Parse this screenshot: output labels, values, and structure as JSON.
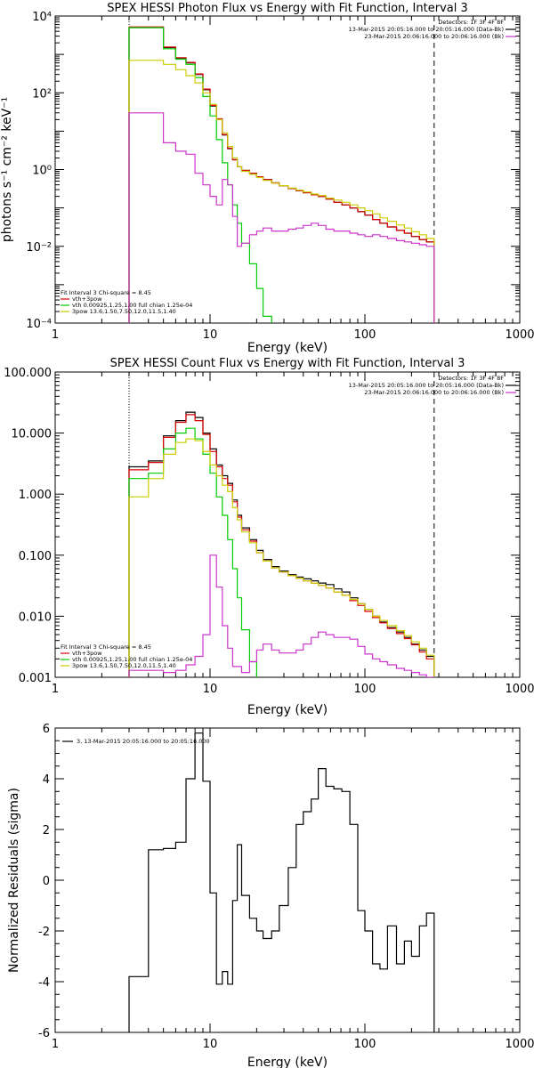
{
  "chart_data": [
    {
      "type": "line",
      "title": "SPEX HESSI Photon Flux vs Energy with Fit Function, Interval 3",
      "xlabel": "Energy (keV)",
      "ylabel": "photons s⁻¹ cm⁻² keV⁻¹",
      "xscale": "log",
      "yscale": "log",
      "xlim": [
        1,
        1000
      ],
      "ylim": [
        0.0001,
        10000
      ],
      "x_ticks": [
        "1",
        "10",
        "100",
        "1000"
      ],
      "y_ticks": [
        "10⁻⁴",
        "10⁻²",
        "10⁰",
        "10²",
        "10⁴"
      ],
      "legend_top_right": {
        "header": "Detectors: 1F 3F 4F 8F",
        "entries": [
          {
            "label": "13-Mar-2015 20:05:16.000 to 20:05:16.000 (Data-Bk)",
            "color": "#000000"
          },
          {
            "label": "23-Mar-2015 20:06:16.000 to 20:06:16.000 (Bk)",
            "color": "#cc33cc"
          }
        ]
      },
      "legend_bottom_left": {
        "header": "Fit Interval 3   Chi-square = 8.45",
        "entries": [
          {
            "label": "vth+3pow",
            "color": "#dd0000"
          },
          {
            "label": "vth 0.00925,1.25,1.00  full chian 1.25e-04",
            "color": "#00cc00"
          },
          {
            "label": "3pow 13.6,1.50,7.50,12.0,11.5,1.40",
            "color": "#cccc00"
          }
        ]
      },
      "vlines": [
        {
          "x": 3,
          "style": "dotted",
          "color": "#000000"
        },
        {
          "x": 280,
          "style": "dashed",
          "color": "#000000"
        }
      ],
      "x_edges": [
        3,
        4,
        5,
        6,
        7,
        8,
        9,
        10,
        11,
        12,
        13,
        14,
        15,
        16,
        18,
        20,
        22,
        25,
        28,
        32,
        36,
        40,
        45,
        50,
        56,
        63,
        71,
        80,
        90,
        100,
        112,
        125,
        140,
        160,
        180,
        200,
        225,
        250,
        280
      ],
      "series": [
        {
          "name": "Data-Bk",
          "color": "#000000",
          "values": [
            5000,
            5000,
            1500,
            800,
            600,
            300,
            120,
            45,
            20,
            8,
            3.5,
            1.8,
            1.2,
            0.95,
            0.8,
            0.65,
            0.55,
            0.45,
            0.38,
            0.32,
            0.28,
            0.25,
            0.22,
            0.2,
            0.17,
            0.14,
            0.12,
            0.1,
            0.08,
            0.065,
            0.05,
            0.04,
            0.032,
            0.026,
            0.022,
            0.018,
            0.015,
            0.013
          ]
        },
        {
          "name": "vth+3pow",
          "color": "#dd0000",
          "values": [
            5200,
            5200,
            1550,
            820,
            620,
            310,
            125,
            47,
            21,
            8.2,
            3.6,
            1.8,
            1.2,
            0.95,
            0.8,
            0.65,
            0.55,
            0.45,
            0.38,
            0.32,
            0.28,
            0.25,
            0.22,
            0.2,
            0.17,
            0.14,
            0.12,
            0.1,
            0.08,
            0.065,
            0.05,
            0.04,
            0.032,
            0.026,
            0.022,
            0.018,
            0.015,
            0.013
          ]
        },
        {
          "name": "vth",
          "color": "#00cc00",
          "values": [
            5000,
            5000,
            1400,
            750,
            550,
            250,
            80,
            25,
            6,
            1.5,
            0.4,
            0.12,
            0.04,
            0.012,
            0.0035,
            0.0008,
            0.00015,
            1e-05
          ]
        },
        {
          "name": "3pow",
          "color": "#cccc00",
          "values": [
            700,
            700,
            550,
            400,
            280,
            180,
            100,
            50,
            20,
            9,
            4,
            2,
            1.2,
            0.9,
            0.75,
            0.62,
            0.52,
            0.44,
            0.38,
            0.33,
            0.29,
            0.26,
            0.23,
            0.21,
            0.18,
            0.16,
            0.14,
            0.12,
            0.1,
            0.085,
            0.07,
            0.055,
            0.045,
            0.036,
            0.03,
            0.024,
            0.02,
            0.016
          ]
        },
        {
          "name": "Bk",
          "color": "#cc33cc",
          "values": [
            30,
            30,
            5,
            3,
            2.5,
            0.8,
            0.4,
            0.2,
            0.12,
            0.55,
            0.4,
            0.06,
            0.01,
            0.012,
            0.02,
            0.025,
            0.03,
            0.025,
            0.025,
            0.028,
            0.03,
            0.035,
            0.04,
            0.035,
            0.028,
            0.025,
            0.025,
            0.022,
            0.02,
            0.018,
            0.02,
            0.018,
            0.016,
            0.014,
            0.013,
            0.012,
            0.011,
            0.01
          ]
        }
      ]
    },
    {
      "type": "line",
      "title": "SPEX HESSI Count Flux vs Energy with Fit Function, Interval 3",
      "xlabel": "Energy (keV)",
      "ylabel": "",
      "xscale": "log",
      "yscale": "log",
      "xlim": [
        1,
        1000
      ],
      "ylim": [
        0.001,
        100
      ],
      "x_ticks": [
        "1",
        "10",
        "100",
        "1000"
      ],
      "y_ticks": [
        "0.001",
        "0.010",
        "0.100",
        "1.000",
        "10.000",
        "100.000"
      ],
      "legend_top_right": {
        "header": "Detectors: 1F 3F 4F 8F",
        "entries": [
          {
            "label": "13-Mar-2015 20:05:16.000 to 20:05:16.000 (Data-Bk)",
            "color": "#000000"
          },
          {
            "label": "23-Mar-2015 20:06:16.000 to 20:06:16.000 (Bk)",
            "color": "#cc33cc"
          }
        ]
      },
      "legend_bottom_left": {
        "header": "Fit Interval 3   Chi-square = 8.45",
        "entries": [
          {
            "label": "vth+3pow",
            "color": "#dd0000"
          },
          {
            "label": "vth 0.00925,1.25,1.00  full chian 1.25e-04",
            "color": "#00cc00"
          },
          {
            "label": "3pow 13.6,1.50,7.50,12.0,11.5,1.40",
            "color": "#cccc00"
          }
        ]
      },
      "vlines": [
        {
          "x": 3,
          "style": "dotted",
          "color": "#000000"
        },
        {
          "x": 280,
          "style": "dashed",
          "color": "#000000"
        }
      ],
      "x_edges": [
        3,
        4,
        5,
        6,
        7,
        8,
        9,
        10,
        11,
        12,
        13,
        14,
        15,
        16,
        18,
        20,
        22,
        25,
        28,
        32,
        36,
        40,
        45,
        50,
        56,
        63,
        71,
        80,
        90,
        100,
        112,
        125,
        140,
        160,
        180,
        200,
        225,
        250,
        280
      ],
      "series": [
        {
          "name": "Data-Bk",
          "color": "#000000",
          "values": [
            2.8,
            3.5,
            9,
            16,
            22,
            18,
            10,
            5.5,
            3,
            2,
            1.5,
            0.8,
            0.45,
            0.28,
            0.18,
            0.12,
            0.085,
            0.065,
            0.055,
            0.048,
            0.044,
            0.041,
            0.038,
            0.035,
            0.033,
            0.028,
            0.025,
            0.02,
            0.016,
            0.013,
            0.01,
            0.008,
            0.0065,
            0.0055,
            0.0045,
            0.0035,
            0.0028,
            0.0022
          ]
        },
        {
          "name": "vth+3pow",
          "color": "#dd0000",
          "values": [
            2.5,
            3.3,
            8.5,
            15,
            20,
            16,
            9.5,
            5,
            2.8,
            1.8,
            1.4,
            0.75,
            0.42,
            0.26,
            0.17,
            0.11,
            0.08,
            0.062,
            0.053,
            0.046,
            0.042,
            0.038,
            0.035,
            0.032,
            0.029,
            0.025,
            0.022,
            0.018,
            0.015,
            0.012,
            0.0095,
            0.0078,
            0.0063,
            0.0052,
            0.0043,
            0.0034,
            0.0026,
            0.002
          ]
        },
        {
          "name": "vth",
          "color": "#00cc00",
          "values": [
            1.8,
            2.2,
            5.5,
            10,
            12,
            8,
            4.5,
            2.2,
            0.9,
            0.45,
            0.18,
            0.06,
            0.02,
            0.006,
            0.0018,
            0.0005
          ]
        },
        {
          "name": "3pow",
          "color": "#cccc00",
          "values": [
            0.9,
            1.8,
            4.5,
            7,
            8,
            7.5,
            5,
            3,
            2,
            1.4,
            1.1,
            0.6,
            0.38,
            0.24,
            0.16,
            0.11,
            0.08,
            0.062,
            0.053,
            0.046,
            0.042,
            0.038,
            0.035,
            0.032,
            0.029,
            0.025,
            0.022,
            0.019,
            0.016,
            0.013,
            0.01,
            0.0085,
            0.007,
            0.0058,
            0.0048,
            0.0038,
            0.003,
            0.0023
          ]
        },
        {
          "name": "Bk",
          "color": "#cc33cc",
          "values": [
            0.0013,
            0.0013,
            0.0012,
            0.0013,
            0.0016,
            0.0022,
            0.005,
            0.1,
            0.03,
            0.007,
            0.003,
            0.0015,
            0.0015,
            0.0012,
            0.0018,
            0.0028,
            0.0035,
            0.0028,
            0.0025,
            0.0025,
            0.0028,
            0.0035,
            0.0045,
            0.0055,
            0.005,
            0.0045,
            0.0045,
            0.0042,
            0.0032,
            0.0024,
            0.002,
            0.0018,
            0.0016,
            0.0014,
            0.0013,
            0.0012,
            0.0011,
            0.001
          ]
        }
      ]
    },
    {
      "type": "line",
      "title": "",
      "xlabel": "Energy (keV)",
      "ylabel": "Normalized Residuals (sigma)",
      "xscale": "log",
      "yscale": "linear",
      "xlim": [
        1,
        1000
      ],
      "ylim": [
        -6,
        6
      ],
      "x_ticks": [
        "1",
        "10",
        "100",
        "1000"
      ],
      "y_ticks": [
        "-6",
        "-4",
        "-2",
        "0",
        "2",
        "4",
        "6"
      ],
      "legend_top_left": {
        "entries": [
          {
            "label": "3, 13-Mar-2015 20:05:16.000 to 20:05:16.000",
            "color": "#000000"
          }
        ]
      },
      "x_edges": [
        3,
        4,
        5,
        6,
        7,
        8,
        9,
        10,
        11,
        12,
        13,
        14,
        15,
        16,
        18,
        20,
        22,
        25,
        28,
        32,
        36,
        40,
        45,
        50,
        56,
        63,
        71,
        80,
        90,
        100,
        112,
        125,
        140,
        160,
        180,
        200,
        225,
        250,
        280
      ],
      "series": [
        {
          "name": "Residuals",
          "color": "#000000",
          "values": [
            -3.8,
            1.2,
            1.25,
            1.5,
            4,
            5.8,
            3.9,
            -0.5,
            -4.1,
            -3.6,
            -4.1,
            -0.8,
            1.4,
            -0.6,
            -1.5,
            -2,
            -2.3,
            -2,
            -1,
            0.5,
            2.2,
            2.7,
            3.2,
            4.4,
            3.7,
            3.6,
            3.5,
            2.2,
            -1.2,
            -2,
            -3.3,
            -3.5,
            -1.8,
            -3.3,
            -2.4,
            -3,
            -1.8,
            -1.3
          ]
        }
      ]
    }
  ]
}
